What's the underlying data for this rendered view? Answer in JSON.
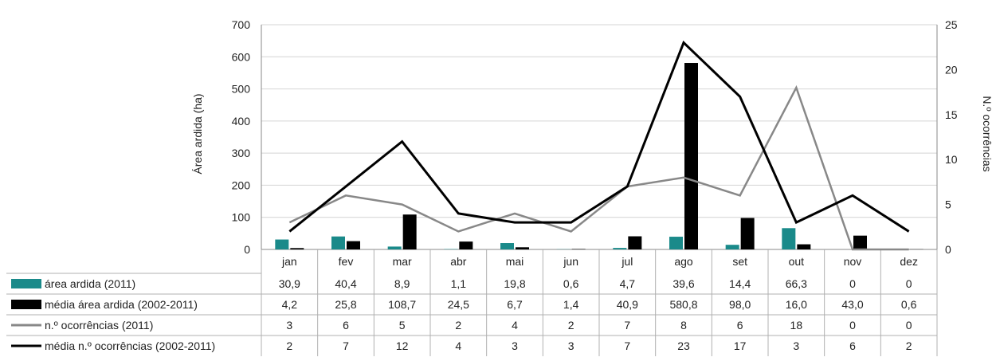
{
  "chart_data": {
    "type": "bar",
    "title": "",
    "ylabel": "Área ardida (ha)",
    "y2label": "N.º ocorrências",
    "ylim": [
      0,
      700
    ],
    "y2lim": [
      0,
      25
    ],
    "yticks": [
      "0",
      "100",
      "200",
      "300",
      "400",
      "500",
      "600",
      "700"
    ],
    "y2ticks": [
      "0",
      "5",
      "10",
      "15",
      "20",
      "25"
    ],
    "grid": true,
    "legend": "table-bottom",
    "categories": [
      "jan",
      "fev",
      "mar",
      "abr",
      "mai",
      "jun",
      "jul",
      "ago",
      "set",
      "out",
      "nov",
      "dez"
    ],
    "series": [
      {
        "name": "área ardida (2011)",
        "kind": "bar",
        "axis": "left",
        "color": "#1a8a8a",
        "values": [
          30.9,
          40.4,
          8.9,
          1.1,
          19.8,
          0.6,
          4.7,
          39.6,
          14.4,
          66.3,
          0,
          0
        ],
        "labels": [
          "30,9",
          "40,4",
          "8,9",
          "1,1",
          "19,8",
          "0,6",
          "4,7",
          "39,6",
          "14,4",
          "66,3",
          "0",
          "0"
        ]
      },
      {
        "name": "média área ardida (2002-2011)",
        "kind": "bar",
        "axis": "left",
        "color": "#000000",
        "values": [
          4.2,
          25.8,
          108.7,
          24.5,
          6.7,
          1.4,
          40.9,
          580.8,
          98.0,
          16.0,
          43.0,
          0.6
        ],
        "labels": [
          "4,2",
          "25,8",
          "108,7",
          "24,5",
          "6,7",
          "1,4",
          "40,9",
          "580,8",
          "98,0",
          "16,0",
          "43,0",
          "0,6"
        ]
      },
      {
        "name": "n.º ocorrências (2011)",
        "kind": "line",
        "axis": "right",
        "color": "#888888",
        "values": [
          3,
          6,
          5,
          2,
          4,
          2,
          7,
          8,
          6,
          18,
          0,
          0
        ],
        "labels": [
          "3",
          "6",
          "5",
          "2",
          "4",
          "2",
          "7",
          "8",
          "6",
          "18",
          "0",
          "0"
        ]
      },
      {
        "name": "média n.º ocorrências (2002-2011)",
        "kind": "line",
        "axis": "right",
        "color": "#000000",
        "values": [
          2,
          7,
          12,
          4,
          3,
          3,
          7,
          23,
          17,
          3,
          6,
          2
        ],
        "labels": [
          "2",
          "7",
          "12",
          "4",
          "3",
          "3",
          "7",
          "23",
          "17",
          "3",
          "6",
          "2"
        ]
      }
    ]
  }
}
